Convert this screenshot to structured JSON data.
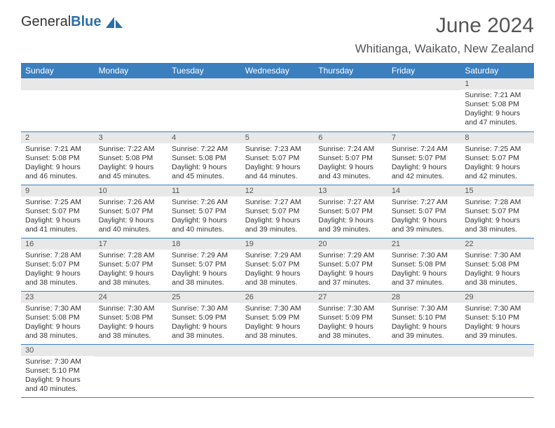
{
  "logo": {
    "text_a": "General",
    "text_b": "Blue"
  },
  "title": "June 2024",
  "location": "Whitianga, Waikato, New Zealand",
  "day_headers": [
    "Sunday",
    "Monday",
    "Tuesday",
    "Wednesday",
    "Thursday",
    "Friday",
    "Saturday"
  ],
  "colors": {
    "header_bg": "#3b7fbf",
    "header_text": "#ffffff",
    "daynum_bg": "#e8e8e8",
    "border_top": "#aaaaaa",
    "border_bottom": "#3b7fbf",
    "text": "#333333",
    "logo_blue": "#2b6fa8"
  },
  "first_day_column": 6,
  "days": [
    {
      "n": 1,
      "sr": "7:21 AM",
      "ss": "5:08 PM",
      "dl": "9 hours and 47 minutes."
    },
    {
      "n": 2,
      "sr": "7:21 AM",
      "ss": "5:08 PM",
      "dl": "9 hours and 46 minutes."
    },
    {
      "n": 3,
      "sr": "7:22 AM",
      "ss": "5:08 PM",
      "dl": "9 hours and 45 minutes."
    },
    {
      "n": 4,
      "sr": "7:22 AM",
      "ss": "5:08 PM",
      "dl": "9 hours and 45 minutes."
    },
    {
      "n": 5,
      "sr": "7:23 AM",
      "ss": "5:07 PM",
      "dl": "9 hours and 44 minutes."
    },
    {
      "n": 6,
      "sr": "7:24 AM",
      "ss": "5:07 PM",
      "dl": "9 hours and 43 minutes."
    },
    {
      "n": 7,
      "sr": "7:24 AM",
      "ss": "5:07 PM",
      "dl": "9 hours and 42 minutes."
    },
    {
      "n": 8,
      "sr": "7:25 AM",
      "ss": "5:07 PM",
      "dl": "9 hours and 42 minutes."
    },
    {
      "n": 9,
      "sr": "7:25 AM",
      "ss": "5:07 PM",
      "dl": "9 hours and 41 minutes."
    },
    {
      "n": 10,
      "sr": "7:26 AM",
      "ss": "5:07 PM",
      "dl": "9 hours and 40 minutes."
    },
    {
      "n": 11,
      "sr": "7:26 AM",
      "ss": "5:07 PM",
      "dl": "9 hours and 40 minutes."
    },
    {
      "n": 12,
      "sr": "7:27 AM",
      "ss": "5:07 PM",
      "dl": "9 hours and 39 minutes."
    },
    {
      "n": 13,
      "sr": "7:27 AM",
      "ss": "5:07 PM",
      "dl": "9 hours and 39 minutes."
    },
    {
      "n": 14,
      "sr": "7:27 AM",
      "ss": "5:07 PM",
      "dl": "9 hours and 39 minutes."
    },
    {
      "n": 15,
      "sr": "7:28 AM",
      "ss": "5:07 PM",
      "dl": "9 hours and 38 minutes."
    },
    {
      "n": 16,
      "sr": "7:28 AM",
      "ss": "5:07 PM",
      "dl": "9 hours and 38 minutes."
    },
    {
      "n": 17,
      "sr": "7:28 AM",
      "ss": "5:07 PM",
      "dl": "9 hours and 38 minutes."
    },
    {
      "n": 18,
      "sr": "7:29 AM",
      "ss": "5:07 PM",
      "dl": "9 hours and 38 minutes."
    },
    {
      "n": 19,
      "sr": "7:29 AM",
      "ss": "5:07 PM",
      "dl": "9 hours and 38 minutes."
    },
    {
      "n": 20,
      "sr": "7:29 AM",
      "ss": "5:07 PM",
      "dl": "9 hours and 37 minutes."
    },
    {
      "n": 21,
      "sr": "7:30 AM",
      "ss": "5:08 PM",
      "dl": "9 hours and 37 minutes."
    },
    {
      "n": 22,
      "sr": "7:30 AM",
      "ss": "5:08 PM",
      "dl": "9 hours and 38 minutes."
    },
    {
      "n": 23,
      "sr": "7:30 AM",
      "ss": "5:08 PM",
      "dl": "9 hours and 38 minutes."
    },
    {
      "n": 24,
      "sr": "7:30 AM",
      "ss": "5:08 PM",
      "dl": "9 hours and 38 minutes."
    },
    {
      "n": 25,
      "sr": "7:30 AM",
      "ss": "5:09 PM",
      "dl": "9 hours and 38 minutes."
    },
    {
      "n": 26,
      "sr": "7:30 AM",
      "ss": "5:09 PM",
      "dl": "9 hours and 38 minutes."
    },
    {
      "n": 27,
      "sr": "7:30 AM",
      "ss": "5:09 PM",
      "dl": "9 hours and 38 minutes."
    },
    {
      "n": 28,
      "sr": "7:30 AM",
      "ss": "5:10 PM",
      "dl": "9 hours and 39 minutes."
    },
    {
      "n": 29,
      "sr": "7:30 AM",
      "ss": "5:10 PM",
      "dl": "9 hours and 39 minutes."
    },
    {
      "n": 30,
      "sr": "7:30 AM",
      "ss": "5:10 PM",
      "dl": "9 hours and 40 minutes."
    }
  ],
  "labels": {
    "sunrise": "Sunrise:",
    "sunset": "Sunset:",
    "daylight": "Daylight:"
  }
}
